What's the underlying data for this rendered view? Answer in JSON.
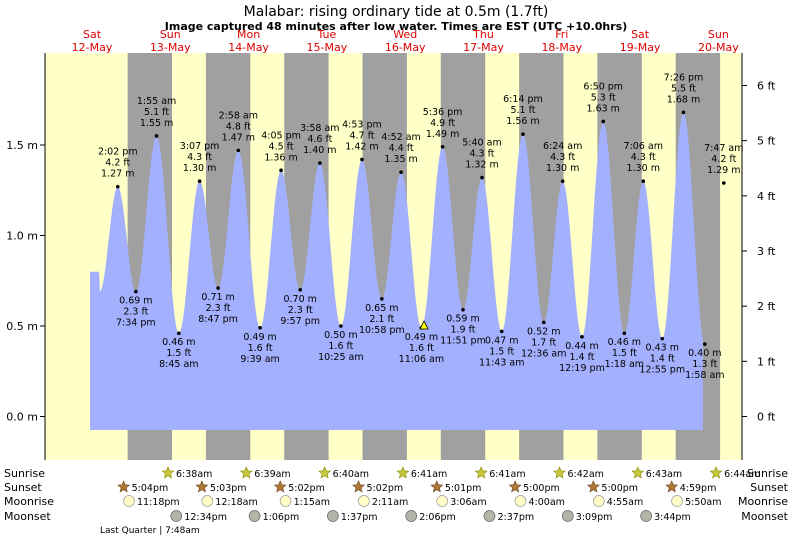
{
  "chart_data": {
    "type": "area",
    "title": "Malabar: rising  ordinary tide at 0.5m (1.7ft)",
    "subtitle": "Image captured 48 minutes after low water. Times are EST (UTC +10.0hrs)",
    "colors": {
      "water": "#a3b0fd",
      "day": "#ffffc8",
      "night": "#a0a0a0",
      "date_text": "#e00000",
      "moon_fill": "#fffcc8"
    },
    "y_left": {
      "unit": "m",
      "range": [
        -0.07,
        1.97
      ],
      "ticks": [
        {
          "v": 0.0,
          "label": "0.0 m"
        },
        {
          "v": 0.5,
          "label": "0.5 m"
        },
        {
          "v": 1.0,
          "label": "1.0 m"
        },
        {
          "v": 1.5,
          "label": "1.5 m"
        }
      ]
    },
    "y_right": {
      "unit": "ft",
      "ticks": [
        {
          "v": 0,
          "label": "0 ft"
        },
        {
          "v": 1,
          "label": "1 ft"
        },
        {
          "v": 2,
          "label": "2 ft"
        },
        {
          "v": 3,
          "label": "3 ft"
        },
        {
          "v": 4,
          "label": "4 ft"
        },
        {
          "v": 5,
          "label": "5 ft"
        },
        {
          "v": 6,
          "label": "6 ft"
        }
      ]
    },
    "days": [
      {
        "day": "Sat",
        "date": "12-May"
      },
      {
        "day": "Sun",
        "date": "13-May"
      },
      {
        "day": "Mon",
        "date": "14-May"
      },
      {
        "day": "Tue",
        "date": "15-May"
      },
      {
        "day": "Wed",
        "date": "16-May"
      },
      {
        "day": "Thu",
        "date": "17-May"
      },
      {
        "day": "Fri",
        "date": "18-May"
      },
      {
        "day": "Sat",
        "date": "19-May"
      },
      {
        "day": "Sun",
        "date": "20-May"
      }
    ],
    "tides": [
      {
        "time": "2:02 pm",
        "ft": "4.2 ft",
        "m": "1.27 m",
        "v": 1.27,
        "type": "high",
        "d": 0,
        "h": 14.03
      },
      {
        "time": "7:34 pm",
        "ft": "2.3 ft",
        "m": "0.69 m",
        "v": 0.69,
        "type": "low",
        "d": 0,
        "h": 19.57
      },
      {
        "time": "1:55 am",
        "ft": "5.1 ft",
        "m": "1.55 m",
        "v": 1.55,
        "type": "high",
        "d": 1,
        "h": 1.92
      },
      {
        "time": "8:45 am",
        "ft": "1.5 ft",
        "m": "0.46 m",
        "v": 0.46,
        "type": "low",
        "d": 1,
        "h": 8.75
      },
      {
        "time": "3:07 pm",
        "ft": "4.3 ft",
        "m": "1.30 m",
        "v": 1.3,
        "type": "high",
        "d": 1,
        "h": 15.12
      },
      {
        "time": "8:47 pm",
        "ft": "2.3 ft",
        "m": "0.71 m",
        "v": 0.71,
        "type": "low",
        "d": 1,
        "h": 20.78
      },
      {
        "time": "2:58 am",
        "ft": "4.8 ft",
        "m": "1.47 m",
        "v": 1.47,
        "type": "high",
        "d": 2,
        "h": 2.97
      },
      {
        "time": "9:39 am",
        "ft": "1.6 ft",
        "m": "0.49 m",
        "v": 0.49,
        "type": "low",
        "d": 2,
        "h": 9.65
      },
      {
        "time": "4:05 pm",
        "ft": "4.5 ft",
        "m": "1.36 m",
        "v": 1.36,
        "type": "high",
        "d": 2,
        "h": 16.08
      },
      {
        "time": "9:57 pm",
        "ft": "2.3 ft",
        "m": "0.70 m",
        "v": 0.7,
        "type": "low",
        "d": 2,
        "h": 21.95
      },
      {
        "time": "3:58 am",
        "ft": "4.6 ft",
        "m": "1.40 m",
        "v": 1.4,
        "type": "high",
        "d": 3,
        "h": 3.97
      },
      {
        "time": "10:25 am",
        "ft": "1.6 ft",
        "m": "0.50 m",
        "v": 0.5,
        "type": "low",
        "d": 3,
        "h": 10.42
      },
      {
        "time": "4:53 pm",
        "ft": "4.7 ft",
        "m": "1.42 m",
        "v": 1.42,
        "type": "high",
        "d": 3,
        "h": 16.88
      },
      {
        "time": "10:58 pm",
        "ft": "2.1 ft",
        "m": "0.65 m",
        "v": 0.65,
        "type": "low",
        "d": 3,
        "h": 22.97
      },
      {
        "time": "4:52 am",
        "ft": "4.4 ft",
        "m": "1.35 m",
        "v": 1.35,
        "type": "high",
        "d": 4,
        "h": 4.87
      },
      {
        "time": "11:06 am",
        "ft": "1.6 ft",
        "m": "0.49 m",
        "v": 0.49,
        "type": "low",
        "d": 4,
        "h": 11.1
      },
      {
        "time": "5:36 pm",
        "ft": "4.9 ft",
        "m": "1.49 m",
        "v": 1.49,
        "type": "high",
        "d": 4,
        "h": 17.6
      },
      {
        "time": "11:51 pm",
        "ft": "1.9 ft",
        "m": "0.59 m",
        "v": 0.59,
        "type": "low",
        "d": 4,
        "h": 23.85
      },
      {
        "time": "5:40 am",
        "ft": "4.3 ft",
        "m": "1.32 m",
        "v": 1.32,
        "type": "high",
        "d": 5,
        "h": 5.67
      },
      {
        "time": "11:43 am",
        "ft": "1.5 ft",
        "m": "0.47 m",
        "v": 0.47,
        "type": "low",
        "d": 5,
        "h": 11.72
      },
      {
        "time": "6:14 pm",
        "ft": "5.1 ft",
        "m": "1.56 m",
        "v": 1.56,
        "type": "high",
        "d": 5,
        "h": 18.23
      },
      {
        "time": "12:36 am",
        "ft": "1.7 ft",
        "m": "0.52 m",
        "v": 0.52,
        "type": "low",
        "d": 6,
        "h": 0.6
      },
      {
        "time": "6:24 am",
        "ft": "4.3 ft",
        "m": "1.30 m",
        "v": 1.3,
        "type": "high",
        "d": 6,
        "h": 6.4
      },
      {
        "time": "12:19 pm",
        "ft": "1.4 ft",
        "m": "0.44 m",
        "v": 0.44,
        "type": "low",
        "d": 6,
        "h": 12.32
      },
      {
        "time": "6:50 pm",
        "ft": "5.3 ft",
        "m": "1.63 m",
        "v": 1.63,
        "type": "high",
        "d": 6,
        "h": 18.83
      },
      {
        "time": "1:18 am",
        "ft": "1.5 ft",
        "m": "0.46 m",
        "v": 0.46,
        "type": "low",
        "d": 7,
        "h": 1.3
      },
      {
        "time": "7:06 am",
        "ft": "4.3 ft",
        "m": "1.30 m",
        "v": 1.3,
        "type": "high",
        "d": 7,
        "h": 7.1
      },
      {
        "time": "12:55 pm",
        "ft": "1.4 ft",
        "m": "0.43 m",
        "v": 0.43,
        "type": "low",
        "d": 7,
        "h": 12.92
      },
      {
        "time": "7:26 pm",
        "ft": "5.5 ft",
        "m": "1.68 m",
        "v": 1.68,
        "type": "high",
        "d": 7,
        "h": 19.43
      },
      {
        "time": "1:58 am",
        "ft": "1.3 ft",
        "m": "0.40 m",
        "v": 0.4,
        "type": "low",
        "d": 8,
        "h": 1.97
      },
      {
        "time": "7:47 am",
        "ft": "4.2 ft",
        "m": "1.29 m",
        "v": 1.29,
        "type": "high",
        "d": 8,
        "h": 7.78
      }
    ],
    "now_marker": {
      "d": 4,
      "h": 11.9,
      "v": 0.5
    },
    "sunrise": [
      "6:38am",
      "6:39am",
      "6:40am",
      "6:41am",
      "6:41am",
      "6:42am",
      "6:43am",
      "6:44am"
    ],
    "sunset": [
      "5:04pm",
      "5:03pm",
      "5:02pm",
      "5:02pm",
      "5:01pm",
      "5:00pm",
      "5:00pm",
      "4:59pm"
    ],
    "moonrise": [
      "11:18pm",
      "12:18am",
      "1:15am",
      "2:11am",
      "3:06am",
      "4:00am",
      "4:55am",
      "5:50am"
    ],
    "moonset": [
      "12:34pm",
      "1:06pm",
      "1:37pm",
      "2:06pm",
      "2:37pm",
      "3:09pm",
      "3:44pm"
    ],
    "row_labels": {
      "sunrise": "Sunrise",
      "sunset": "Sunset",
      "moonrise": "Moonrise",
      "moonset": "Moonset"
    },
    "moon_phase": "Last Quarter | 7:48am"
  }
}
